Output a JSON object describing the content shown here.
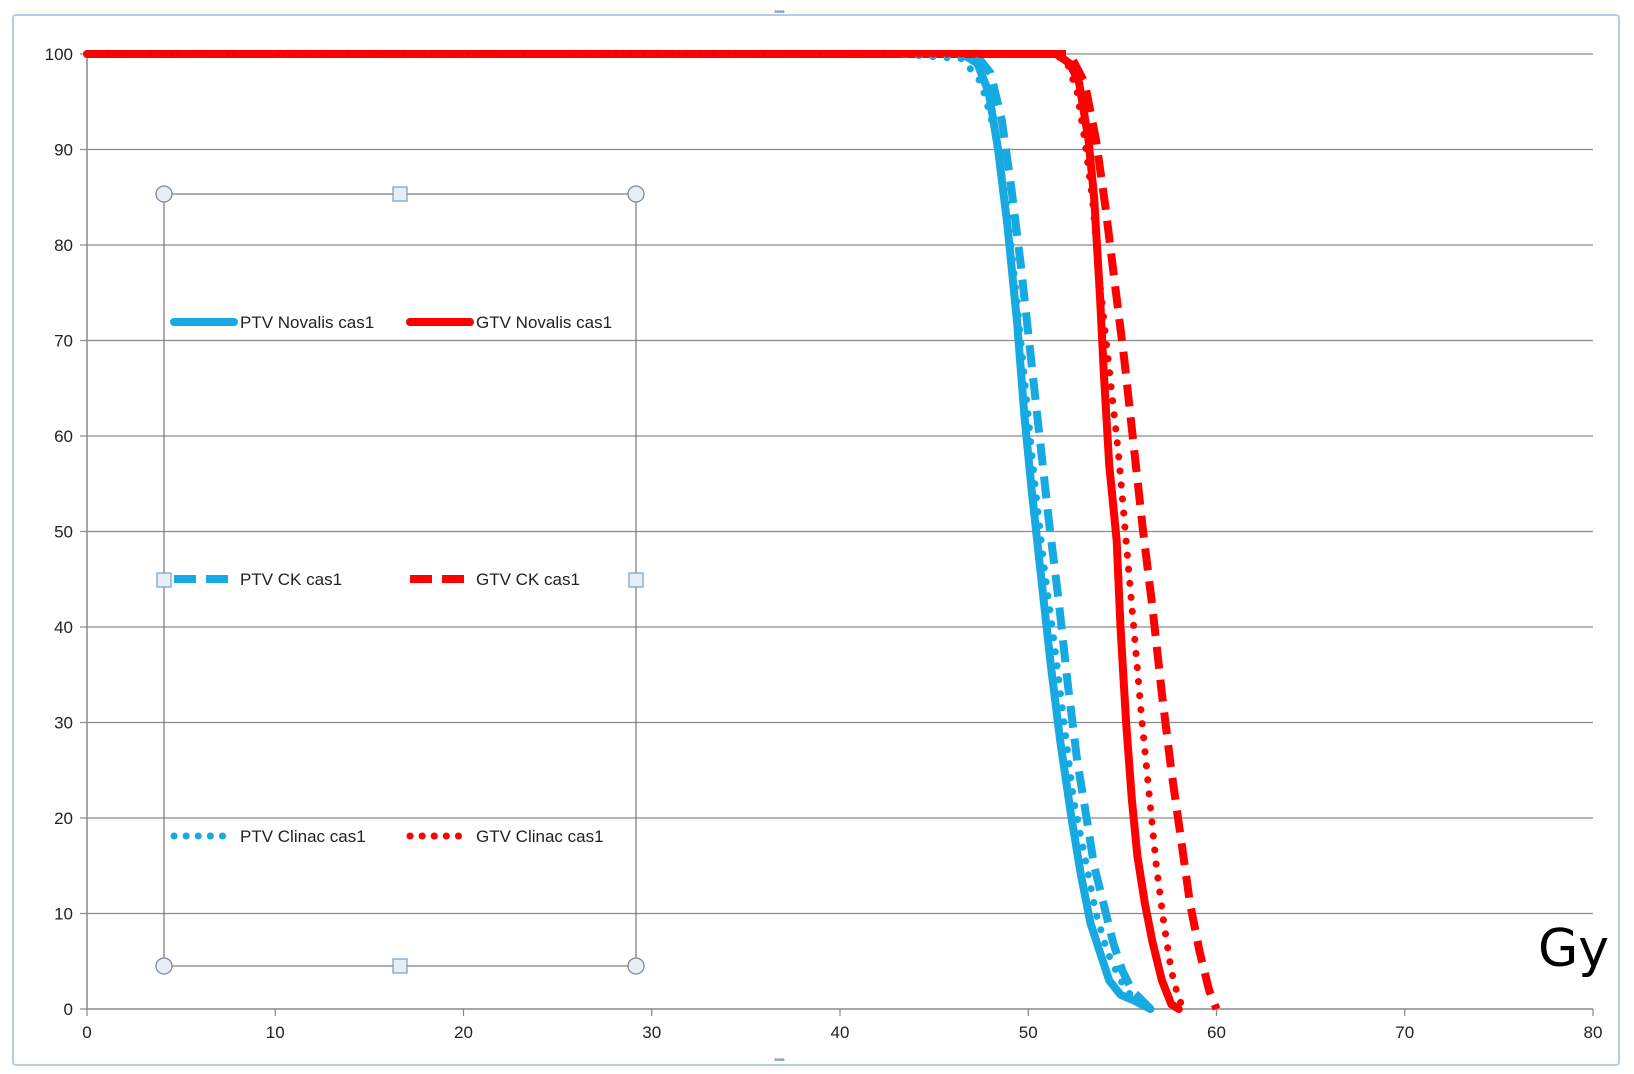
{
  "chart_data": {
    "type": "line",
    "x_unit_label": "Gy",
    "xlim": [
      0,
      80
    ],
    "ylim": [
      0,
      100
    ],
    "x_ticks": [
      0,
      10,
      20,
      30,
      40,
      50,
      60,
      70,
      80
    ],
    "y_ticks": [
      0,
      10,
      20,
      30,
      40,
      50,
      60,
      70,
      80,
      90,
      100
    ],
    "grid": "horizontal",
    "legend_position": "inside-left",
    "series": [
      {
        "name": "PTV Novalis cas1",
        "color": "#17a9e1",
        "style": "solid",
        "points": [
          [
            0,
            100
          ],
          [
            46.5,
            100
          ],
          [
            47.3,
            99
          ],
          [
            47.9,
            96
          ],
          [
            48.4,
            90
          ],
          [
            48.9,
            82
          ],
          [
            49.4,
            72
          ],
          [
            49.8,
            62
          ],
          [
            50.2,
            54
          ],
          [
            50.7,
            45
          ],
          [
            51.2,
            36
          ],
          [
            51.7,
            28
          ],
          [
            52.3,
            20
          ],
          [
            52.8,
            14
          ],
          [
            53.3,
            9
          ],
          [
            53.8,
            6
          ],
          [
            54.3,
            3
          ],
          [
            54.9,
            1.5
          ],
          [
            55.7,
            0.8
          ],
          [
            56.5,
            0
          ]
        ]
      },
      {
        "name": "GTV Novalis cas1",
        "color": "#ff0000",
        "style": "solid",
        "points": [
          [
            0,
            100
          ],
          [
            51.5,
            100
          ],
          [
            52.2,
            99
          ],
          [
            52.7,
            97
          ],
          [
            53.2,
            91
          ],
          [
            53.5,
            85
          ],
          [
            53.8,
            75
          ],
          [
            54.0,
            67
          ],
          [
            54.3,
            57
          ],
          [
            54.7,
            49
          ],
          [
            54.9,
            40
          ],
          [
            55.2,
            30
          ],
          [
            55.5,
            22
          ],
          [
            55.8,
            16
          ],
          [
            56.2,
            11
          ],
          [
            56.6,
            7
          ],
          [
            57.1,
            3
          ],
          [
            57.6,
            0.5
          ],
          [
            58.0,
            0
          ]
        ]
      },
      {
        "name": "PTV CK cas1",
        "color": "#17a9e1",
        "style": "dash",
        "points": [
          [
            0,
            100
          ],
          [
            47.2,
            100
          ],
          [
            48.0,
            98
          ],
          [
            48.6,
            93
          ],
          [
            49.1,
            86
          ],
          [
            49.6,
            78
          ],
          [
            50.1,
            69
          ],
          [
            50.6,
            60
          ],
          [
            51.1,
            51
          ],
          [
            51.6,
            43
          ],
          [
            52.1,
            34
          ],
          [
            52.6,
            26
          ],
          [
            53.1,
            20
          ],
          [
            53.5,
            15
          ],
          [
            54.0,
            11
          ],
          [
            54.5,
            7
          ],
          [
            55.0,
            4
          ],
          [
            55.5,
            2
          ],
          [
            56.0,
            1
          ],
          [
            56.5,
            0
          ]
        ]
      },
      {
        "name": "GTV CK cas1",
        "color": "#ff0000",
        "style": "dash",
        "points": [
          [
            0,
            100
          ],
          [
            52.2,
            100
          ],
          [
            53.0,
            97
          ],
          [
            53.6,
            91
          ],
          [
            54.1,
            84
          ],
          [
            54.6,
            76
          ],
          [
            55.1,
            68
          ],
          [
            55.6,
            59
          ],
          [
            56.1,
            50
          ],
          [
            56.6,
            42
          ],
          [
            57.1,
            33
          ],
          [
            57.6,
            25
          ],
          [
            58.1,
            18
          ],
          [
            58.6,
            11
          ],
          [
            59.1,
            6
          ],
          [
            59.6,
            2
          ],
          [
            60.0,
            0
          ]
        ]
      },
      {
        "name": "PTV Clinac cas1",
        "color": "#17a9e1",
        "style": "dot",
        "points": [
          [
            0,
            100
          ],
          [
            43.0,
            100
          ],
          [
            46.5,
            99.5
          ],
          [
            47.5,
            97
          ],
          [
            48.2,
            92
          ],
          [
            48.8,
            85
          ],
          [
            49.3,
            76
          ],
          [
            49.8,
            66
          ],
          [
            50.3,
            56
          ],
          [
            50.8,
            47
          ],
          [
            51.4,
            38
          ],
          [
            51.9,
            30
          ],
          [
            52.4,
            22
          ],
          [
            53.0,
            16
          ],
          [
            53.6,
            10
          ],
          [
            54.2,
            6
          ],
          [
            54.9,
            3
          ],
          [
            55.6,
            1
          ],
          [
            56.3,
            0
          ]
        ]
      },
      {
        "name": "GTV Clinac cas1",
        "color": "#ff0000",
        "style": "dot",
        "points": [
          [
            0,
            100
          ],
          [
            51.0,
            100
          ],
          [
            52.0,
            99.5
          ],
          [
            52.6,
            96
          ],
          [
            53.0,
            91
          ],
          [
            53.4,
            85
          ],
          [
            53.8,
            76
          ],
          [
            54.3,
            67
          ],
          [
            54.8,
            58
          ],
          [
            55.2,
            49
          ],
          [
            55.6,
            40
          ],
          [
            56.0,
            31
          ],
          [
            56.4,
            23
          ],
          [
            56.8,
            15
          ],
          [
            57.2,
            9
          ],
          [
            57.6,
            4
          ],
          [
            58.0,
            1
          ],
          [
            58.3,
            0
          ]
        ]
      }
    ]
  }
}
